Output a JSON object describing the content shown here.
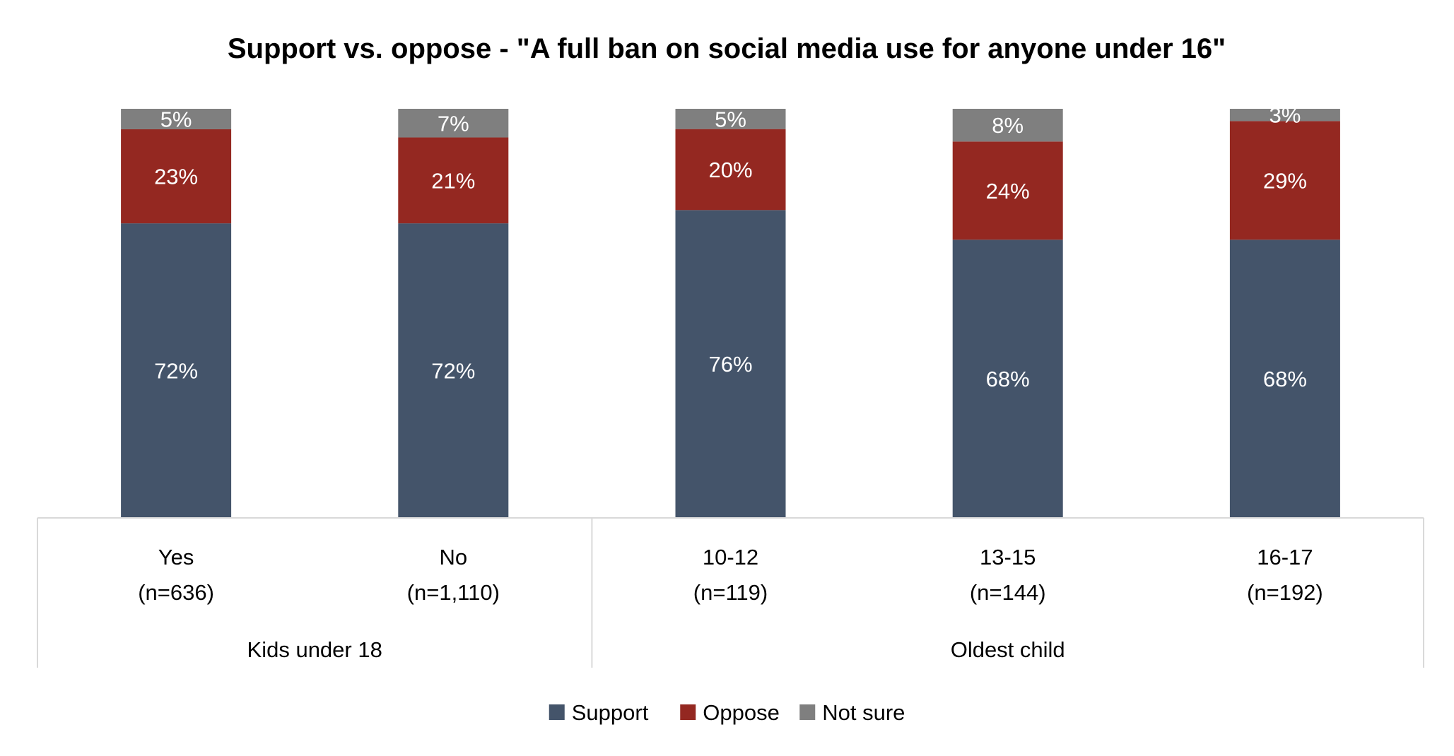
{
  "chart_data": {
    "type": "bar",
    "stacked": true,
    "title": "Support vs. oppose - \"A full ban on social media use for anyone under 16\"",
    "xlabel": "",
    "ylabel": "",
    "ylim": [
      0,
      100
    ],
    "grid": false,
    "legend_position": "bottom",
    "categories": [
      {
        "label": "Yes",
        "n": "(n=636)",
        "group": 0
      },
      {
        "label": "No",
        "n": "(n=1,110)",
        "group": 0
      },
      {
        "label": "10-12",
        "n": "(n=119)",
        "group": 1
      },
      {
        "label": "13-15",
        "n": "(n=144)",
        "group": 1
      },
      {
        "label": "16-17",
        "n": "(n=192)",
        "group": 1
      }
    ],
    "groups": [
      "Kids under 18",
      "Oldest child"
    ],
    "series": [
      {
        "name": "Support",
        "color": "#44546a",
        "values": [
          72,
          72,
          76,
          68,
          68
        ],
        "labels": [
          "72%",
          "72%",
          "76%",
          "68%",
          "68%"
        ]
      },
      {
        "name": "Oppose",
        "color": "#942821",
        "values": [
          23,
          21,
          20,
          24,
          29
        ],
        "labels": [
          "23%",
          "21%",
          "20%",
          "24%",
          "29%"
        ]
      },
      {
        "name": "Not sure",
        "color": "#7f7f7f",
        "values": [
          5,
          7,
          5,
          8,
          3
        ],
        "labels": [
          "5%",
          "7%",
          "5%",
          "8%",
          "3%"
        ]
      }
    ]
  }
}
